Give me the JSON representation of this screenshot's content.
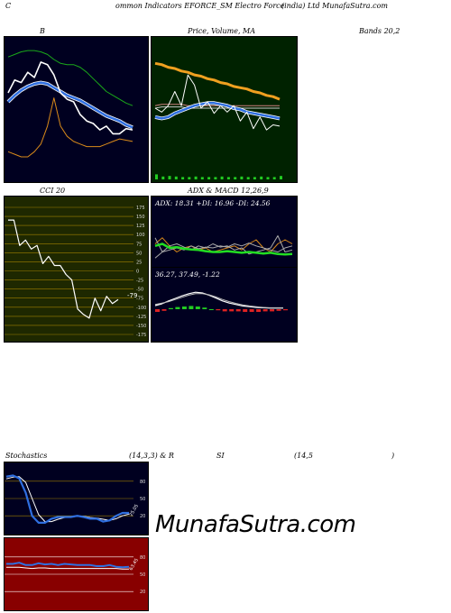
{
  "header": {
    "left": "C",
    "mid": "ommon Indicators EFORCE_SM Electro Force",
    "right": "(india) Ltd MunafaSutra.com"
  },
  "bb": {
    "title": "B",
    "title_right": "Bands 20,2"
  },
  "pvm": {
    "title": "Price, Volume, MA"
  },
  "cci": {
    "title": "CCI 20",
    "value_label": "-79",
    "ticks": [
      "175",
      "150",
      "125",
      "100",
      "75",
      "50",
      "25",
      "0",
      "-25",
      "-50",
      "-75",
      "-100",
      "-125",
      "-150",
      "-175"
    ]
  },
  "adx": {
    "title": "ADX & MACD 12,26,9",
    "readout": "ADX: 18.31 +DI: 16.96 -DI: 24.56"
  },
  "macd": {
    "readout": "36.27, 37.49, -1.22"
  },
  "stoch": {
    "title": "Stochastics",
    "params": "(14,3,3) & R",
    "rsi_title": "SI",
    "rsi_params": "(14,5",
    "close_paren": ")",
    "ticks": [
      "80",
      "50",
      "20"
    ],
    "value_label": "25.05"
  },
  "rsi": {
    "ticks": [
      "80",
      "50",
      "20"
    ],
    "value_label": "63.45"
  },
  "watermark": "MunafaSutra.com",
  "colors": {
    "navy": "#000020",
    "green_bg": "#002200",
    "olive_bg": "#1e2800",
    "red_bg": "#880000",
    "blue": "#2f6fe0",
    "orange": "#f0a020"
  },
  "chart_data": [
    {
      "name": "bollinger",
      "type": "line",
      "series": [
        {
          "values": [
            0.62,
            0.72,
            0.7,
            0.78,
            0.74,
            0.86,
            0.84,
            0.76,
            0.62,
            0.57,
            0.55,
            0.45,
            0.4,
            0.38,
            0.33,
            0.36,
            0.3,
            0.3,
            0.34,
            0.33
          ]
        },
        {
          "values": [
            0.9,
            0.92,
            0.94,
            0.95,
            0.95,
            0.94,
            0.92,
            0.88,
            0.85,
            0.84,
            0.84,
            0.82,
            0.78,
            0.73,
            0.68,
            0.63,
            0.6,
            0.57,
            0.54,
            0.52
          ]
        },
        {
          "values": [
            0.55,
            0.6,
            0.64,
            0.67,
            0.69,
            0.7,
            0.69,
            0.66,
            0.63,
            0.6,
            0.58,
            0.56,
            0.53,
            0.5,
            0.47,
            0.44,
            0.42,
            0.4,
            0.37,
            0.35
          ]
        },
        {
          "values": [
            0.16,
            0.14,
            0.12,
            0.12,
            0.16,
            0.22,
            0.36,
            0.58,
            0.36,
            0.28,
            0.24,
            0.22,
            0.2,
            0.2,
            0.2,
            0.22,
            0.24,
            0.26,
            0.25,
            0.24
          ]
        }
      ]
    },
    {
      "name": "price_volume_ma",
      "type": "line",
      "series": [
        {
          "values": [
            0.85,
            0.84,
            0.82,
            0.81,
            0.79,
            0.78,
            0.76,
            0.75,
            0.73,
            0.72,
            0.7,
            0.69,
            0.67,
            0.66,
            0.65,
            0.63,
            0.62,
            0.6,
            0.59,
            0.57
          ]
        },
        {
          "values": [
            0.5,
            0.47,
            0.52,
            0.63,
            0.52,
            0.76,
            0.68,
            0.5,
            0.55,
            0.46,
            0.52,
            0.47,
            0.52,
            0.4,
            0.47,
            0.34,
            0.43,
            0.33,
            0.37,
            0.36
          ]
        },
        {
          "values": [
            0.43,
            0.42,
            0.43,
            0.46,
            0.48,
            0.5,
            0.52,
            0.53,
            0.54,
            0.54,
            0.53,
            0.52,
            0.5,
            0.49,
            0.47,
            0.46,
            0.45,
            0.44,
            0.43,
            0.42
          ]
        },
        {
          "values": [
            0.52,
            0.53,
            0.53,
            0.53,
            0.53,
            0.52,
            0.52,
            0.52,
            0.52,
            0.52,
            0.52,
            0.52,
            0.52,
            0.52,
            0.52,
            0.52,
            0.52,
            0.52,
            0.52,
            0.52
          ]
        },
        {
          "values": [
            0.06,
            0.02,
            0.03,
            0.02,
            0.01,
            0.01,
            0.02,
            0.01,
            0.01,
            0.01,
            0.02,
            0.01,
            0.01,
            0.02,
            0.01,
            0.01,
            0.02,
            0.01,
            0.01,
            0.03
          ]
        }
      ]
    },
    {
      "name": "cci",
      "type": "line",
      "ylim": [
        -175,
        175
      ],
      "series": [
        {
          "values": [
            140,
            140,
            70,
            85,
            60,
            70,
            20,
            40,
            15,
            15,
            -10,
            -25,
            -105,
            -120,
            -130,
            -75,
            -110,
            -70,
            -90,
            -79
          ]
        }
      ]
    },
    {
      "name": "adx",
      "type": "line",
      "series": [
        {
          "values": [
            0.45,
            0.5,
            0.4,
            0.42,
            0.38,
            0.36,
            0.35,
            0.32,
            0.3,
            0.3,
            0.32,
            0.3,
            0.28,
            0.3,
            0.28,
            0.26,
            0.28,
            0.25,
            0.24,
            0.25
          ]
        },
        {
          "values": [
            0.65,
            0.3,
            0.45,
            0.5,
            0.42,
            0.35,
            0.45,
            0.4,
            0.5,
            0.42,
            0.45,
            0.35,
            0.4,
            0.25,
            0.3,
            0.35,
            0.4,
            0.7,
            0.3,
            0.35
          ]
        },
        {
          "values": [
            0.15,
            0.3,
            0.35,
            0.4,
            0.35,
            0.45,
            0.38,
            0.42,
            0.4,
            0.45,
            0.42,
            0.5,
            0.45,
            0.52,
            0.45,
            0.4,
            0.35,
            0.3,
            0.4,
            0.45
          ]
        },
        {
          "values": [
            0.5,
            0.65,
            0.45,
            0.3,
            0.4,
            0.45,
            0.35,
            0.4,
            0.3,
            0.35,
            0.4,
            0.45,
            0.35,
            0.5,
            0.6,
            0.4,
            0.3,
            0.5,
            0.6,
            0.5
          ]
        }
      ]
    },
    {
      "name": "macd",
      "type": "line",
      "series": [
        {
          "values": [
            0.45,
            0.5,
            0.58,
            0.65,
            0.72,
            0.78,
            0.82,
            0.8,
            0.74,
            0.66,
            0.58,
            0.52,
            0.48,
            0.44,
            0.42,
            0.4,
            0.39,
            0.38,
            0.38,
            0.38
          ]
        },
        {
          "values": [
            0.48,
            0.52,
            0.56,
            0.62,
            0.68,
            0.74,
            0.78,
            0.78,
            0.75,
            0.69,
            0.62,
            0.56,
            0.51,
            0.47,
            0.44,
            0.42,
            0.4,
            0.39,
            0.39,
            0.39
          ]
        },
        {
          "values": [
            -0.05,
            -0.03,
            0.02,
            0.04,
            0.05,
            0.06,
            0.05,
            0.03,
            0.0,
            -0.02,
            -0.04,
            -0.04,
            -0.04,
            -0.05,
            -0.05,
            -0.05,
            -0.04,
            -0.04,
            -0.03,
            -0.02
          ]
        }
      ]
    },
    {
      "name": "stochastics",
      "type": "line",
      "ylim": [
        0,
        100
      ],
      "series": [
        {
          "values": [
            88,
            90,
            85,
            60,
            20,
            8,
            8,
            15,
            18,
            18,
            18,
            20,
            18,
            15,
            15,
            10,
            12,
            20,
            25,
            25
          ]
        },
        {
          "values": [
            84,
            87,
            88,
            78,
            50,
            22,
            10,
            10,
            14,
            17,
            18,
            19,
            19,
            17,
            16,
            14,
            12,
            15,
            20,
            23
          ]
        }
      ]
    },
    {
      "name": "rsi",
      "type": "line",
      "ylim": [
        0,
        100
      ],
      "series": [
        {
          "values": [
            68,
            68,
            70,
            66,
            66,
            69,
            67,
            68,
            66,
            68,
            67,
            66,
            66,
            66,
            64,
            64,
            66,
            63,
            62,
            63
          ]
        },
        {
          "values": [
            62,
            62,
            62,
            61,
            60,
            61,
            61,
            60,
            60,
            60,
            60,
            60,
            60,
            60,
            60,
            60,
            60,
            60,
            59,
            59
          ]
        }
      ]
    }
  ]
}
